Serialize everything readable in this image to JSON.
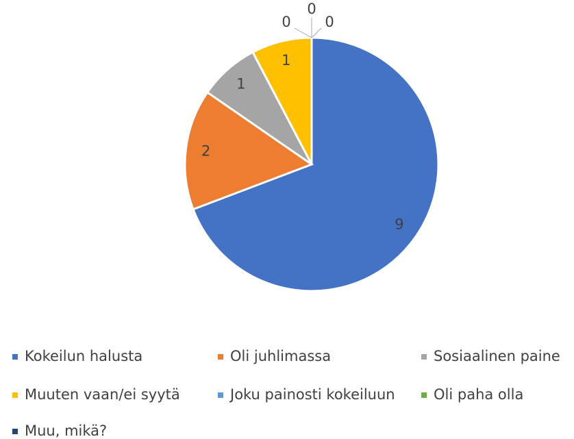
{
  "chart_data": {
    "type": "pie",
    "categories": [
      "Kokeilun halusta",
      "Oli juhlimassa",
      "Sosiaalinen paine",
      "Muuten vaan/ei syytä",
      "Joku painosti kokeiluun",
      "Oli paha olla",
      "Muu, mikä?"
    ],
    "values": [
      9,
      2,
      1,
      1,
      0,
      0,
      0
    ],
    "colors": [
      "#4472c4",
      "#ed7d31",
      "#a5a5a5",
      "#ffc000",
      "#5b9bd5",
      "#70ad47",
      "#264478"
    ],
    "legend": "bottom"
  }
}
